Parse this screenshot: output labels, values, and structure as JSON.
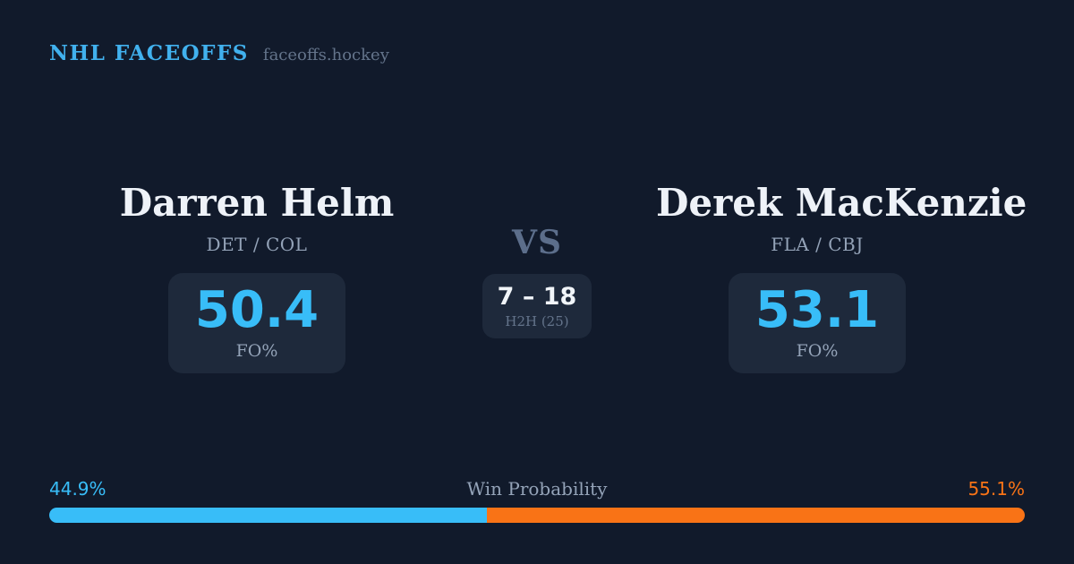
{
  "header": {
    "brand": "NHL FACEOFFS",
    "domain": "faceoffs.hockey"
  },
  "player_left": {
    "name": "Darren Helm",
    "teams": "DET / COL",
    "fo_pct": "50.4",
    "stat_label": "FO%"
  },
  "versus": {
    "label": "VS",
    "h2h_score": "7 – 18",
    "h2h_label": "H2H (25)"
  },
  "player_right": {
    "name": "Derek MacKenzie",
    "teams": "FLA / CBJ",
    "fo_pct": "53.1",
    "stat_label": "FO%"
  },
  "win_probability": {
    "title": "Win Probability",
    "left_label": "44.9%",
    "right_label": "55.1%",
    "left_value": 44.9,
    "right_value": 55.1
  },
  "colors": {
    "background": "#111a2b",
    "panel": "#1e293b",
    "accent_blue": "#38bdf8",
    "accent_orange": "#f97316",
    "text_primary": "#eef2f8",
    "text_muted": "#94a3b8",
    "text_faint": "#64748b"
  },
  "chart_data": {
    "type": "bar",
    "title": "Win Probability",
    "categories": [
      "Darren Helm",
      "Derek MacKenzie"
    ],
    "values": [
      44.9,
      55.1
    ],
    "series": [
      {
        "name": "Win Probability %",
        "values": [
          44.9,
          55.1
        ]
      },
      {
        "name": "FO%",
        "values": [
          50.4,
          53.1
        ]
      },
      {
        "name": "H2H faceoff wins (of 25)",
        "values": [
          7,
          18
        ]
      }
    ],
    "xlabel": "",
    "ylabel": "",
    "ylim": [
      0,
      100
    ],
    "legend_position": "none",
    "grid": false
  }
}
